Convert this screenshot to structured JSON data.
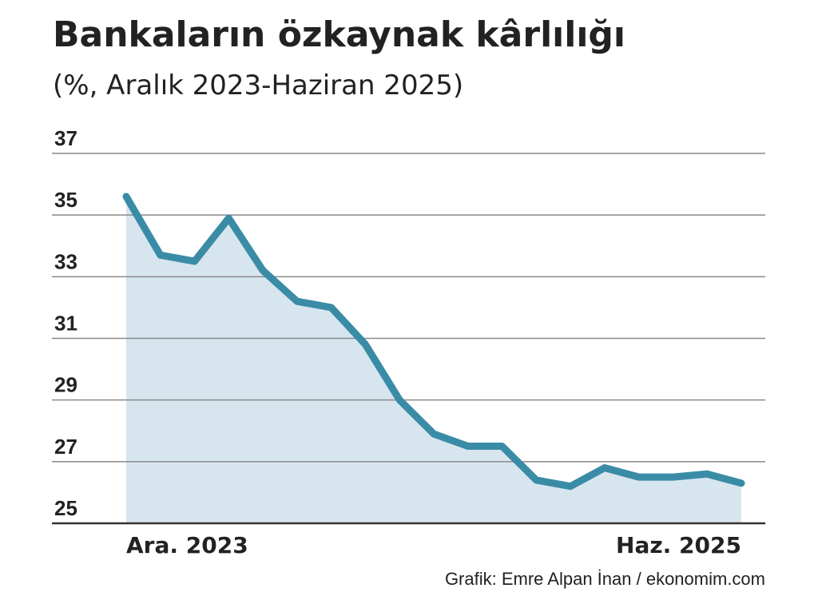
{
  "chart_data": {
    "type": "line",
    "title": "Bankaların özkaynak kârlılığı",
    "subtitle": "(%, Aralık 2023-Haziran 2025)",
    "source": "Grafik: Emre Alpan İnan / ekonomim.com",
    "categories": [
      "Ara. 2023",
      null,
      null,
      null,
      null,
      null,
      null,
      null,
      null,
      null,
      null,
      null,
      null,
      null,
      null,
      null,
      null,
      null,
      "Haz. 2025"
    ],
    "series": [
      {
        "color": "#3a8ca6",
        "fill": "#d7e5ef",
        "values": [
          35.6,
          33.7,
          33.5,
          34.9,
          33.2,
          32.2,
          32.0,
          30.8,
          29.0,
          27.9,
          27.5,
          27.5,
          26.4,
          26.2,
          26.8,
          26.5,
          26.5,
          26.6,
          26.3
        ]
      }
    ],
    "ylim": [
      25,
      37
    ],
    "yticks": [
      25,
      27,
      29,
      31,
      33,
      35,
      37
    ],
    "grid": true
  }
}
